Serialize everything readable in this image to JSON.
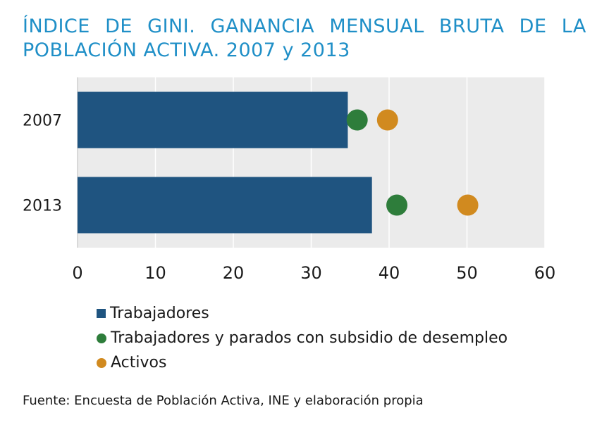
{
  "title": {
    "line1_words": [
      "ÍNDICE",
      "DE",
      "GINI.",
      "GANANCIA",
      "MENSUAL",
      "BRUTA",
      "DE",
      "LA"
    ],
    "line2": "POBLACIÓN ACTIVA. 2007 y 2013"
  },
  "source": "Fuente: Encuesta de Población Activa, INE y elaboración propia",
  "colors": {
    "trabajadores": "#1f5480",
    "parados": "#2e7d3b",
    "activos": "#d18a1f",
    "plot_bg": "#ebebeb",
    "grid": "#ffffff"
  },
  "chart_data": {
    "type": "bar",
    "orientation": "horizontal",
    "categories": [
      "2007",
      "2013"
    ],
    "series": [
      {
        "name": "Trabajadores",
        "mark": "bar",
        "values": [
          34.7,
          37.8
        ]
      },
      {
        "name": "Trabajadores y parados con subsidio de desempleo",
        "mark": "dot",
        "values": [
          35.9,
          41.0
        ]
      },
      {
        "name": "Activos",
        "mark": "dot",
        "values": [
          39.8,
          50.1
        ]
      }
    ],
    "xlim": [
      0,
      60
    ],
    "xticks": [
      "0",
      "10",
      "20",
      "30",
      "40",
      "50",
      "60"
    ],
    "grid": true,
    "legend_position": "bottom"
  }
}
